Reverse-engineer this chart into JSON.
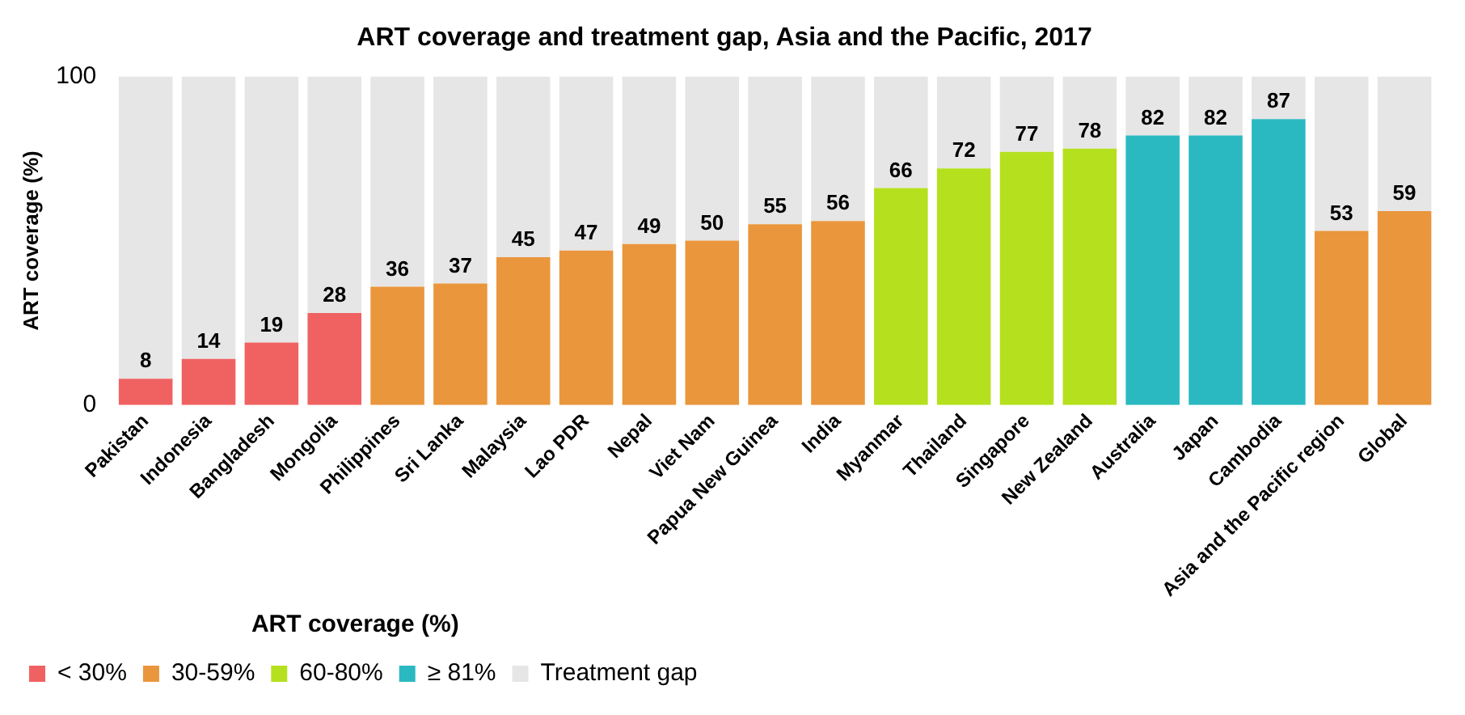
{
  "chart_data": {
    "type": "bar",
    "title": "ART coverage and treatment gap, Asia and the Pacific, 2017",
    "ylabel": "ART coverage (%)",
    "legend_title": "ART coverage (%)",
    "categories": [
      "Pakistan",
      "Indonesia",
      "Bangladesh",
      "Mongolia",
      "Philippines",
      "Sri Lanka",
      "Malaysia",
      "Lao PDR",
      "Nepal",
      "Viet Nam",
      "Papua New Guinea",
      "India",
      "Myanmar",
      "Thailand",
      "Singapore",
      "New Zealand",
      "Australia",
      "Japan",
      "Cambodia",
      "Asia and the Pacific region",
      "Global"
    ],
    "stacked": true,
    "ylim": [
      0,
      100
    ],
    "yticks": [
      0,
      100
    ],
    "grid": false,
    "legend": "bottom left",
    "series": [
      {
        "name": "< 30%",
        "color": "#f06262",
        "values": [
          8,
          14,
          19,
          28,
          null,
          null,
          null,
          null,
          null,
          null,
          null,
          null,
          null,
          null,
          null,
          null,
          null,
          null,
          null,
          null,
          null
        ],
        "value_labels": [
          "8",
          "14",
          "19",
          "28",
          null,
          null,
          null,
          null,
          null,
          null,
          null,
          null,
          null,
          null,
          null,
          null,
          null,
          null,
          null,
          null,
          null
        ]
      },
      {
        "name": "30-59%",
        "color": "#ea963c",
        "values": [
          null,
          null,
          null,
          null,
          36,
          37,
          45,
          47,
          49,
          50,
          55,
          56,
          null,
          null,
          null,
          null,
          null,
          null,
          null,
          53,
          59
        ],
        "value_labels": [
          null,
          null,
          null,
          null,
          "36",
          "37",
          "45",
          "47",
          "49",
          "50",
          "55",
          "56",
          null,
          null,
          null,
          null,
          null,
          null,
          null,
          "53",
          "59"
        ]
      },
      {
        "name": "60-80%",
        "color": "#b5e01e",
        "values": [
          null,
          null,
          null,
          null,
          null,
          null,
          null,
          null,
          null,
          null,
          null,
          null,
          66,
          72,
          77,
          78,
          null,
          null,
          null,
          null,
          null
        ],
        "value_labels": [
          null,
          null,
          null,
          null,
          null,
          null,
          null,
          null,
          null,
          null,
          null,
          null,
          "66",
          "72",
          "77",
          "78",
          null,
          null,
          null,
          null,
          null
        ]
      },
      {
        "name": "≥ 81%",
        "color": "#2bb9c1",
        "values": [
          null,
          null,
          null,
          null,
          null,
          null,
          null,
          null,
          null,
          null,
          null,
          null,
          null,
          null,
          null,
          null,
          82,
          82,
          87,
          null,
          null
        ],
        "value_labels": [
          null,
          null,
          null,
          null,
          null,
          null,
          null,
          null,
          null,
          null,
          null,
          null,
          null,
          null,
          null,
          null,
          "82",
          "82",
          "87",
          null,
          null
        ]
      },
      {
        "name": "Treatment gap",
        "color": "#e6e6e6",
        "values": [
          92,
          86,
          81,
          72,
          64,
          63,
          55,
          53,
          51,
          50,
          45,
          44,
          34,
          28,
          23,
          22,
          18,
          18,
          13,
          47,
          41
        ]
      }
    ]
  }
}
